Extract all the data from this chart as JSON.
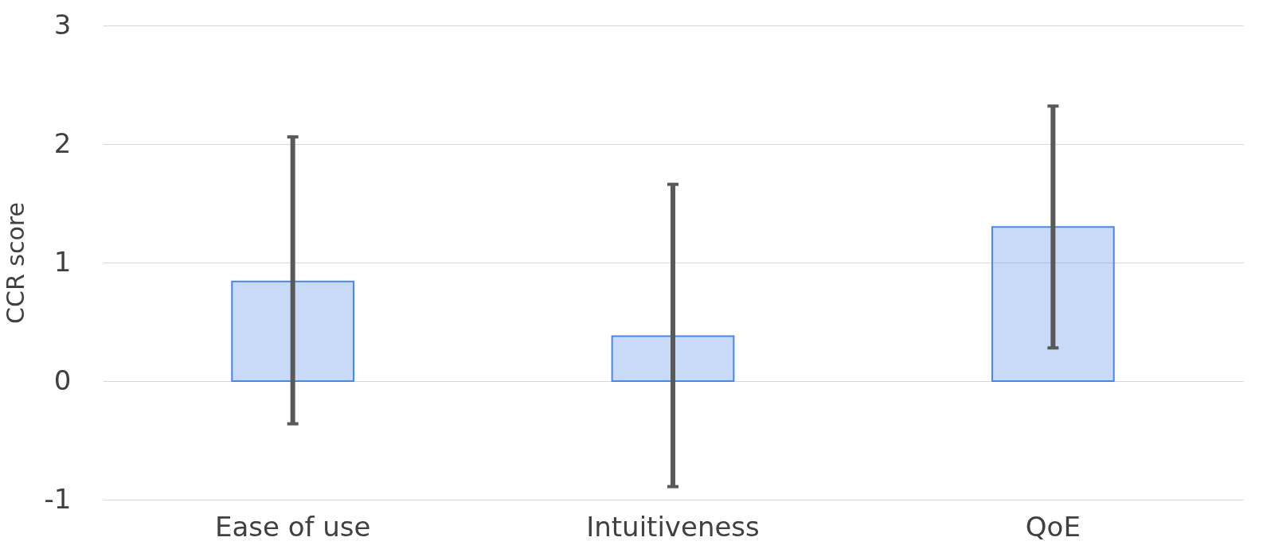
{
  "chart_data": {
    "type": "bar",
    "ylabel": "CCR score",
    "categories": [
      "Ease of use",
      "Intuitiveness",
      "QoE"
    ],
    "values": [
      0.84,
      0.38,
      1.3
    ],
    "errors": [
      [
        -0.36,
        2.06
      ],
      [
        -0.89,
        1.66
      ],
      [
        0.28,
        2.32
      ]
    ],
    "color": "#4a86e8",
    "ylim": [
      -1,
      3
    ],
    "yticks": [
      -1,
      0,
      1,
      2,
      3
    ],
    "grid": "y"
  }
}
